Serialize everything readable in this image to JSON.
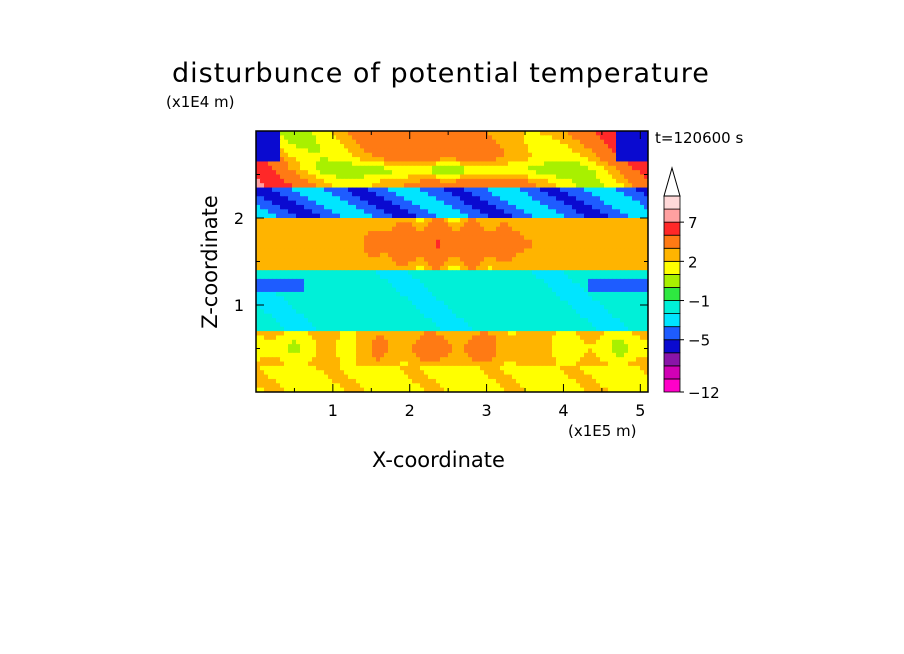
{
  "chart_data": {
    "type": "heatmap",
    "title": "disturbunce of potential temperature",
    "xlabel": "X-coordinate",
    "ylabel": "Z-coordinate",
    "x_unit": "(x1E5 m)",
    "y_unit": "(x1E4 m)",
    "time_label": "t=120600 s",
    "xlim": [
      0,
      5.1
    ],
    "ylim": [
      0,
      3.0
    ],
    "x_ticks": [
      {
        "value": 1,
        "label": "1"
      },
      {
        "value": 2,
        "label": "2"
      },
      {
        "value": 3,
        "label": "3"
      },
      {
        "value": 4,
        "label": "4"
      },
      {
        "value": 5,
        "label": "5"
      }
    ],
    "y_ticks": [
      {
        "value": 1,
        "label": "1"
      },
      {
        "value": 2,
        "label": "2"
      }
    ],
    "colorbar": {
      "levels": [
        -12,
        -11,
        -9,
        -7,
        -5,
        -3,
        -2,
        -1,
        0,
        1,
        2,
        3,
        5,
        7,
        9
      ],
      "colors": [
        "#ff00c8",
        "#d100b5",
        "#8a14a8",
        "#0a0ad0",
        "#1e5cff",
        "#00e5ff",
        "#00f0d8",
        "#2ee840",
        "#a8f000",
        "#ffff00",
        "#ffb400",
        "#ff7a14",
        "#ff2828",
        "#ffa0a0",
        "#ffd8d8"
      ],
      "labels": [
        {
          "value": -12,
          "label": "−12"
        },
        {
          "value": -5,
          "label": "−5"
        },
        {
          "value": -1,
          "label": "−1"
        },
        {
          "value": 2,
          "label": "2"
        },
        {
          "value": 7,
          "label": "7"
        }
      ],
      "overflow_arrow": "top"
    },
    "field_description_layers": [
      {
        "z_range": [
          0.0,
          0.3
        ],
        "dominant": "yellow/green"
      },
      {
        "z_range": [
          0.3,
          0.7
        ],
        "dominant": "yellow/orange"
      },
      {
        "z_range": [
          0.7,
          1.4
        ],
        "dominant": "cyan"
      },
      {
        "z_range": [
          1.4,
          2.0
        ],
        "dominant": "orange/yellow"
      },
      {
        "z_range": [
          2.0,
          2.4
        ],
        "dominant": "blue"
      },
      {
        "z_range": [
          2.4,
          3.0
        ],
        "dominant": "orange/red with blue bands"
      }
    ]
  }
}
